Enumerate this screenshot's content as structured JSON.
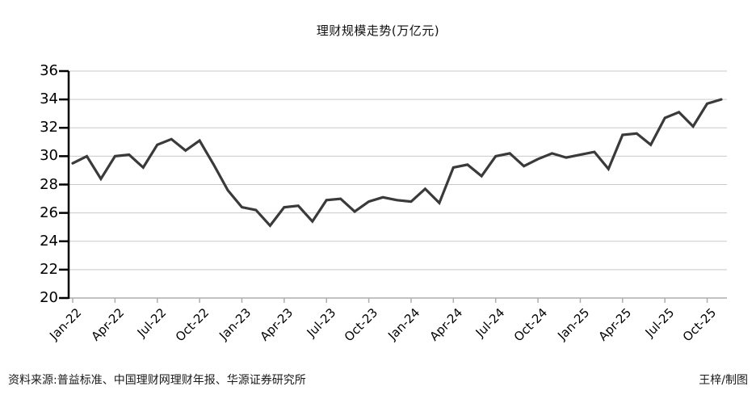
{
  "chart_data": {
    "type": "line",
    "title": "理财规模走势(万亿元)",
    "x": [
      "Jan-22",
      "Feb-22",
      "Mar-22",
      "Apr-22",
      "May-22",
      "Jun-22",
      "Jul-22",
      "Aug-22",
      "Sep-22",
      "Oct-22",
      "Nov-22",
      "Dec-22",
      "Jan-23",
      "Feb-23",
      "Mar-23",
      "Apr-23",
      "May-23",
      "Jun-23",
      "Jul-23",
      "Aug-23",
      "Sep-23",
      "Oct-23",
      "Nov-23",
      "Dec-23",
      "Jan-24",
      "Feb-24",
      "Mar-24",
      "Apr-24",
      "May-24",
      "Jun-24",
      "Jul-24",
      "Aug-24",
      "Sep-24",
      "Oct-24",
      "Nov-24",
      "Dec-24",
      "Jan-25",
      "Feb-25",
      "Mar-25",
      "Apr-25",
      "May-25",
      "Jun-25",
      "Jul-25",
      "Aug-25",
      "Sep-25",
      "Oct-25",
      "Nov-25"
    ],
    "values": [
      29.5,
      30.0,
      28.4,
      30.0,
      30.1,
      29.2,
      30.8,
      31.2,
      30.4,
      31.1,
      29.4,
      27.6,
      26.4,
      26.2,
      25.1,
      26.4,
      26.5,
      25.4,
      26.9,
      27.0,
      26.1,
      26.8,
      27.1,
      26.9,
      26.8,
      27.7,
      26.7,
      29.2,
      29.4,
      28.6,
      30.0,
      30.2,
      29.3,
      29.8,
      30.2,
      29.9,
      30.1,
      30.3,
      29.1,
      31.5,
      31.6,
      30.8,
      32.7,
      33.1,
      32.1,
      33.7,
      34.0
    ],
    "x_tick_labels": [
      "Jan-22",
      "Apr-22",
      "Jul-22",
      "Oct-22",
      "Jan-23",
      "Apr-23",
      "Jul-23",
      "Oct-23",
      "Jan-24",
      "Apr-24",
      "Jul-24",
      "Oct-24",
      "Jan-25",
      "Apr-25",
      "Jul-25",
      "Oct-25"
    ],
    "y_ticks": [
      36,
      34,
      32,
      30,
      28,
      26,
      24,
      22,
      20
    ],
    "ylim": [
      20,
      36
    ],
    "xlabel": "",
    "ylabel": "",
    "legend": "none",
    "grid": "horizontal",
    "line_color": "#3a3a3a",
    "grid_color": "#c9c9c9",
    "x_axis_color": "#aeaeae",
    "y_axis_color": "#000000"
  },
  "footer": {
    "source": "资料来源:普益标准、中国理财网理财年报、华源证券研究所",
    "credit": "王梓/制图"
  }
}
